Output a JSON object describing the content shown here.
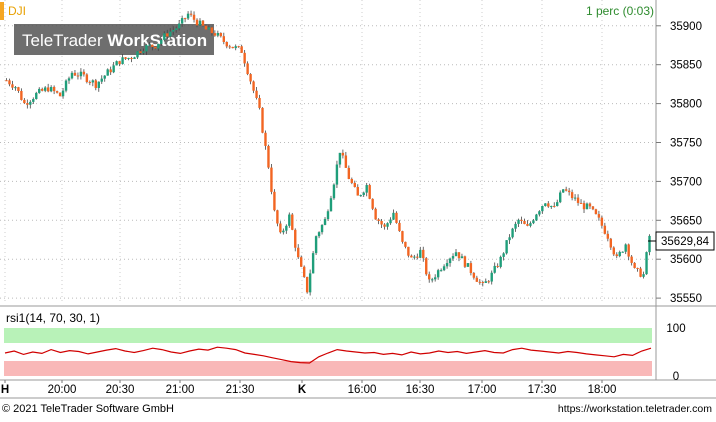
{
  "symbol": "DJI",
  "interval_label": "1 perc (0:03)",
  "watermark": {
    "part1": "TeleTrader",
    "part2": "WorkStation"
  },
  "last_price_label": "35629,84",
  "footer": {
    "copyright": "© 2021 TeleTrader Software GmbH",
    "url": "https://workstation.teletrader.com"
  },
  "indicator_label": "rsi1(14, 70, 30, 1)",
  "rsi_axis": [
    "100",
    "0"
  ],
  "colors": {
    "up": "#1f9e7a",
    "down": "#f26522",
    "wick": "#555555",
    "rsi_line": "#d00000",
    "overbought_band": "#b8f2b8",
    "oversold_band": "#f9b8b8",
    "symbol_text": "#e8a000",
    "interval_text": "#2e8b2e",
    "accent_bar": "#f5a623"
  },
  "chart_data": {
    "type": "candlestick",
    "interval": "1 minute",
    "y_ticks": [
      "35900",
      "35850",
      "35800",
      "35750",
      "35700",
      "35650",
      "35600",
      "35550"
    ],
    "ylim": [
      35545,
      35928
    ],
    "x_ticks": [
      "H",
      "20:00",
      "20:30",
      "21:00",
      "21:30",
      "K",
      "16:00",
      "16:30",
      "17:00",
      "17:30",
      "18:00"
    ],
    "close_path": [
      {
        "t": 0,
        "y": 35830
      },
      {
        "t": 3,
        "y": 35822
      },
      {
        "t": 6,
        "y": 35800
      },
      {
        "t": 10,
        "y": 35812
      },
      {
        "t": 14,
        "y": 35820
      },
      {
        "t": 18,
        "y": 35810
      },
      {
        "t": 22,
        "y": 35840
      },
      {
        "t": 26,
        "y": 35835
      },
      {
        "t": 30,
        "y": 35825
      },
      {
        "t": 34,
        "y": 35840
      },
      {
        "t": 38,
        "y": 35855
      },
      {
        "t": 42,
        "y": 35860
      },
      {
        "t": 46,
        "y": 35872
      },
      {
        "t": 50,
        "y": 35875
      },
      {
        "t": 54,
        "y": 35890
      },
      {
        "t": 58,
        "y": 35900
      },
      {
        "t": 61,
        "y": 35915
      },
      {
        "t": 64,
        "y": 35905
      },
      {
        "t": 67,
        "y": 35895
      },
      {
        "t": 70,
        "y": 35890
      },
      {
        "t": 73,
        "y": 35880
      },
      {
        "t": 76,
        "y": 35873
      },
      {
        "t": 79,
        "y": 35868
      },
      {
        "t": 82,
        "y": 35830
      },
      {
        "t": 85,
        "y": 35790
      },
      {
        "t": 88,
        "y": 35720
      },
      {
        "t": 90,
        "y": 35660
      },
      {
        "t": 92,
        "y": 35630
      },
      {
        "t": 95,
        "y": 35655
      },
      {
        "t": 98,
        "y": 35600
      },
      {
        "t": 101,
        "y": 35560
      },
      {
        "t": 104,
        "y": 35630
      },
      {
        "t": 107,
        "y": 35650
      },
      {
        "t": 110,
        "y": 35700
      },
      {
        "t": 112,
        "y": 35740
      },
      {
        "t": 115,
        "y": 35705
      },
      {
        "t": 118,
        "y": 35680
      },
      {
        "t": 121,
        "y": 35695
      },
      {
        "t": 124,
        "y": 35655
      },
      {
        "t": 127,
        "y": 35640
      },
      {
        "t": 130,
        "y": 35660
      },
      {
        "t": 133,
        "y": 35620
      },
      {
        "t": 136,
        "y": 35600
      },
      {
        "t": 139,
        "y": 35610
      },
      {
        "t": 142,
        "y": 35570
      },
      {
        "t": 145,
        "y": 35585
      },
      {
        "t": 148,
        "y": 35600
      },
      {
        "t": 151,
        "y": 35610
      },
      {
        "t": 154,
        "y": 35595
      },
      {
        "t": 157,
        "y": 35580
      },
      {
        "t": 160,
        "y": 35565
      },
      {
        "t": 163,
        "y": 35580
      },
      {
        "t": 166,
        "y": 35600
      },
      {
        "t": 169,
        "y": 35630
      },
      {
        "t": 172,
        "y": 35650
      },
      {
        "t": 175,
        "y": 35640
      },
      {
        "t": 178,
        "y": 35660
      },
      {
        "t": 181,
        "y": 35675
      },
      {
        "t": 184,
        "y": 35665
      },
      {
        "t": 187,
        "y": 35690
      },
      {
        "t": 190,
        "y": 35680
      },
      {
        "t": 193,
        "y": 35670
      },
      {
        "t": 196,
        "y": 35665
      },
      {
        "t": 199,
        "y": 35650
      },
      {
        "t": 202,
        "y": 35630
      },
      {
        "t": 205,
        "y": 35600
      },
      {
        "t": 208,
        "y": 35620
      },
      {
        "t": 211,
        "y": 35585
      },
      {
        "t": 214,
        "y": 35580
      },
      {
        "t": 216,
        "y": 35629.84
      }
    ],
    "rsi": {
      "label": "rsi1(14, 70, 30, 1)",
      "upper": 70,
      "lower": 30,
      "ylim": [
        0,
        100
      ],
      "values": [
        48,
        52,
        45,
        50,
        47,
        55,
        49,
        53,
        51,
        46,
        50,
        54,
        57,
        52,
        49,
        53,
        58,
        55,
        50,
        47,
        52,
        56,
        54,
        60,
        58,
        55,
        48,
        45,
        42,
        38,
        34,
        30,
        28,
        27,
        40,
        48,
        55,
        52,
        50,
        48,
        49,
        45,
        47,
        44,
        50,
        46,
        48,
        52,
        49,
        51,
        47,
        50,
        53,
        49,
        48,
        55,
        58,
        54,
        52,
        50,
        48,
        51,
        49,
        46,
        44,
        42,
        40,
        45,
        43,
        52,
        58
      ]
    }
  }
}
